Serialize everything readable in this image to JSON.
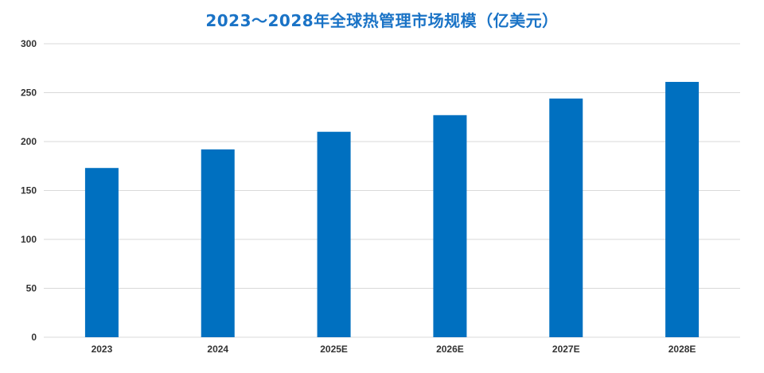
{
  "chart_data": {
    "type": "bar",
    "title": "2023～2028年全球热管理市场规模（亿美元）",
    "xlabel": "",
    "ylabel": "",
    "categories": [
      "2023",
      "2024",
      "2025E",
      "2026E",
      "2027E",
      "2028E"
    ],
    "values": [
      173,
      192,
      210,
      227,
      244,
      261
    ],
    "ylim": [
      0,
      300
    ],
    "yticks": [
      "0",
      "50",
      "100",
      "150",
      "200",
      "250",
      "300"
    ],
    "grid": true,
    "bar_color": "#0070c0",
    "title_color": "#1a73c6",
    "grid_color": "#d9d9d9"
  }
}
